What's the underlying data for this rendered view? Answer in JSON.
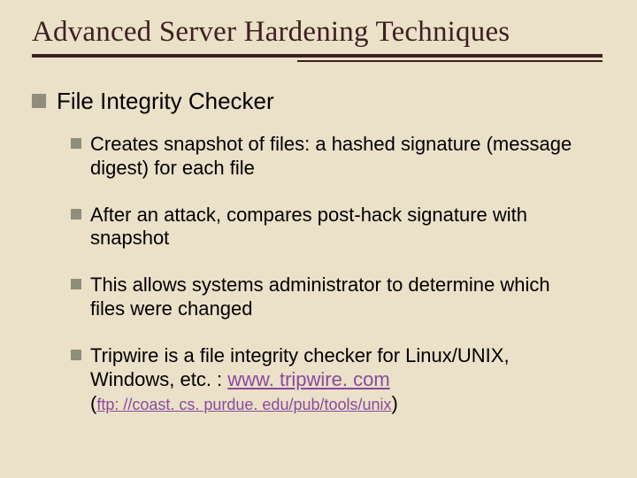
{
  "colors": {
    "background": "#ebe0c8",
    "title_color": "#3d2020",
    "bullet_color": "#8e8e7a",
    "body_text": "#000000",
    "link_color": "#8a4a9e",
    "underline_color": "#3d2020"
  },
  "typography": {
    "title_font": "Times New Roman",
    "title_fontsize_pt": 25,
    "body_font": "Arial",
    "lvl1_fontsize_pt": 20,
    "lvl2_fontsize_pt": 17,
    "link_small_fontsize_pt": 14
  },
  "title": "Advanced Server Hardening Techniques",
  "lvl1": {
    "text": "File Integrity Checker"
  },
  "bullets": [
    {
      "text": "Creates snapshot of files: a hashed signature (message digest) for each file"
    },
    {
      "text": "After an attack, compares post-hack signature with snapshot"
    },
    {
      "text": "This allows systems administrator to determine which files were changed"
    },
    {
      "text_prefix": "Tripwire is a file integrity checker for Linux/UNIX, Windows, etc. : ",
      "link1": "www. tripwire. com",
      "paren_open": "(",
      "link2": "ftp: //coast. cs. purdue. edu/pub/tools/unix",
      "paren_close": ")"
    }
  ]
}
